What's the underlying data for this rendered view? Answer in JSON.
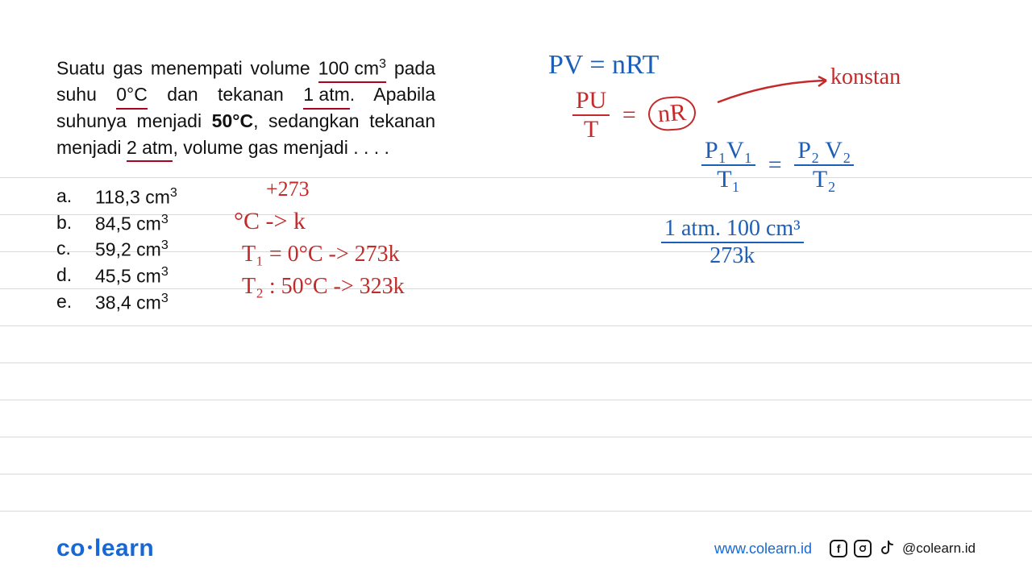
{
  "layout": {
    "background_color": "#ffffff",
    "rule_color": "#d9d9d9",
    "rule_y_positions": [
      220,
      266,
      312,
      358,
      404,
      450,
      496,
      542,
      588,
      634
    ]
  },
  "colors": {
    "text": "#111111",
    "red_pen": "#c42a2a",
    "blue_pen": "#1c5fb8",
    "brand_blue": "#1668d6",
    "underline_red": "#b00020"
  },
  "problem": {
    "prefix": "Suatu gas menempati volume ",
    "vol_text": "100 cm",
    "vol_sup": "3",
    "mid1": " pada suhu ",
    "t1_text": "0°C",
    "mid2": " dan tekanan ",
    "p1_text": "1 atm",
    "mid3": ". Apabila suhunya menjadi ",
    "t2_text": "50°C",
    "mid4": ", sedangkan tekanan menjadi ",
    "p2_text": "2 atm",
    "suffix": ", volume gas menjadi . . . .",
    "font_size": 23
  },
  "options": [
    {
      "key": "a.",
      "val": "118,3 cm",
      "sup": "3"
    },
    {
      "key": "b.",
      "val": "84,5 cm",
      "sup": "3"
    },
    {
      "key": "c.",
      "val": "59,2 cm",
      "sup": "3"
    },
    {
      "key": "d.",
      "val": "45,5 cm",
      "sup": "3"
    },
    {
      "key": "e.",
      "val": "38,4 cm",
      "sup": "3"
    }
  ],
  "handwriting": {
    "plus273": "+273",
    "c_to_k": "°C  ->  k",
    "t1_line": "T₁ = 0°C  -> 273k",
    "t2_line": "T₂ : 50°C -> 323k",
    "ideal_gas": "PV = nRT",
    "pu_over_t_pu": "PU",
    "pu_over_t_t": "T",
    "nr": "nR",
    "konstan": "konstan",
    "combined_p1v1": "P₁V₁",
    "combined_t1": "T₁",
    "combined_p2v2": "P₂ V₂",
    "combined_t2": "T₂",
    "eq": "=",
    "sub_num": "1 atm. 100 cm³",
    "sub_den": "273k"
  },
  "footer": {
    "logo_co": "co",
    "logo_learn": "learn",
    "url": "www.colearn.id",
    "handle": "@colearn.id"
  }
}
